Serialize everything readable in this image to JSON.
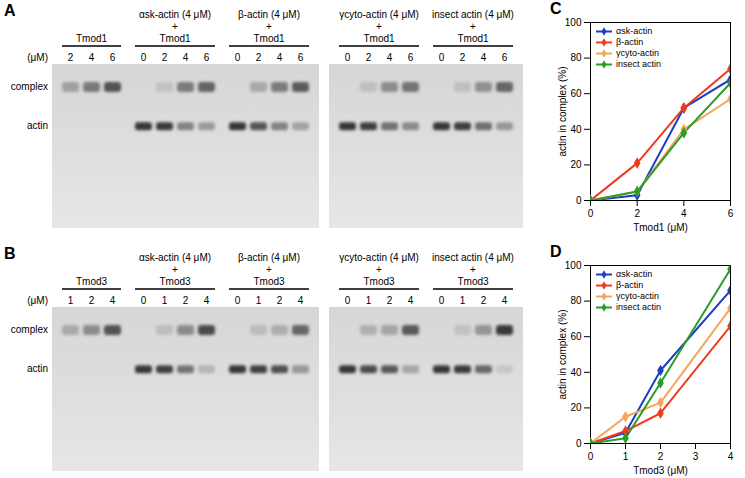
{
  "chart_data": [
    {
      "type": "line",
      "title": "C",
      "x_label": "Tmod1 (μM)",
      "y_label": "actin in complex (%)",
      "x": [
        0,
        2,
        4,
        6
      ],
      "xlim": [
        0,
        6
      ],
      "xticks": [
        0,
        2,
        4,
        6
      ],
      "ylim": [
        0,
        100
      ],
      "yticks": [
        0,
        20,
        40,
        60,
        80,
        100
      ],
      "marker": "diamond",
      "legend": "upper left",
      "series": [
        {
          "name": "αsk-actin",
          "color": "#1f3fbf",
          "values": [
            0,
            3,
            52,
            68
          ]
        },
        {
          "name": "β-actin",
          "color": "#f03a1e",
          "values": [
            0,
            21,
            52,
            74
          ]
        },
        {
          "name": "γcyto-actin",
          "color": "#f5a65b",
          "values": [
            0,
            5,
            40,
            57
          ]
        },
        {
          "name": "insect actin",
          "color": "#2a9d2a",
          "values": [
            0,
            5,
            38,
            66
          ]
        }
      ]
    },
    {
      "type": "line",
      "title": "D",
      "x_label": "Tmod3 (μM)",
      "y_label": "actin in complex (%)",
      "x": [
        0,
        1,
        2,
        4
      ],
      "xlim": [
        0,
        4
      ],
      "xticks": [
        0,
        1,
        2,
        3,
        4
      ],
      "ylim": [
        0,
        100
      ],
      "yticks": [
        0,
        20,
        40,
        60,
        80,
        100
      ],
      "marker": "diamond",
      "legend": "upper left",
      "series": [
        {
          "name": "αsk-actin",
          "color": "#1f3fbf",
          "values": [
            0,
            6,
            41,
            86
          ]
        },
        {
          "name": "β-actin",
          "color": "#f03a1e",
          "values": [
            0,
            7,
            17,
            66
          ]
        },
        {
          "name": "γcyto-actin",
          "color": "#f5a65b",
          "values": [
            0,
            15,
            23,
            76
          ]
        },
        {
          "name": "insect actin",
          "color": "#2a9d2a",
          "values": [
            0,
            3,
            34,
            98
          ]
        }
      ]
    }
  ],
  "gels": [
    {
      "panel": "A",
      "unit_label": "(μM)",
      "band_labels": [
        "complex",
        "actin"
      ],
      "pieces": [
        [
          {
            "lines": [
              "Tmod1"
            ],
            "lanes": [
              2,
              4,
              6
            ]
          },
          {
            "lines": [
              "αsk-actin (4 μM)",
              "+",
              "Tmod1"
            ],
            "lanes": [
              0,
              2,
              4,
              6
            ]
          },
          {
            "lines": [
              "β-actin (4 μM)",
              "+",
              "Tmod1"
            ],
            "lanes": [
              0,
              2,
              4,
              6
            ]
          }
        ],
        [
          {
            "lines": [
              "γcyto-actin (4 μM)",
              "+",
              "Tmod1"
            ],
            "lanes": [
              0,
              2,
              4,
              6
            ]
          },
          {
            "lines": [
              "insect actin (4 μM)",
              "+",
              "Tmod1"
            ],
            "lanes": [
              0,
              2,
              4,
              6
            ]
          }
        ]
      ]
    },
    {
      "panel": "B",
      "unit_label": "(μM)",
      "band_labels": [
        "complex",
        "actin"
      ],
      "pieces": [
        [
          {
            "lines": [
              "Tmod3"
            ],
            "lanes": [
              1,
              2,
              4
            ]
          },
          {
            "lines": [
              "αsk-actin (4 μM)",
              "+",
              "Tmod3"
            ],
            "lanes": [
              0,
              1,
              2,
              4
            ]
          },
          {
            "lines": [
              "β-actin (4 μM)",
              "+",
              "Tmod3"
            ],
            "lanes": [
              0,
              1,
              2,
              4
            ]
          }
        ],
        [
          {
            "lines": [
              "γcyto-actin (4 μM)",
              "+",
              "Tmod3"
            ],
            "lanes": [
              0,
              1,
              2,
              4
            ]
          },
          {
            "lines": [
              "insect actin (4 μM)",
              "+",
              "Tmod3"
            ],
            "lanes": [
              0,
              1,
              2,
              4
            ]
          }
        ]
      ]
    }
  ]
}
